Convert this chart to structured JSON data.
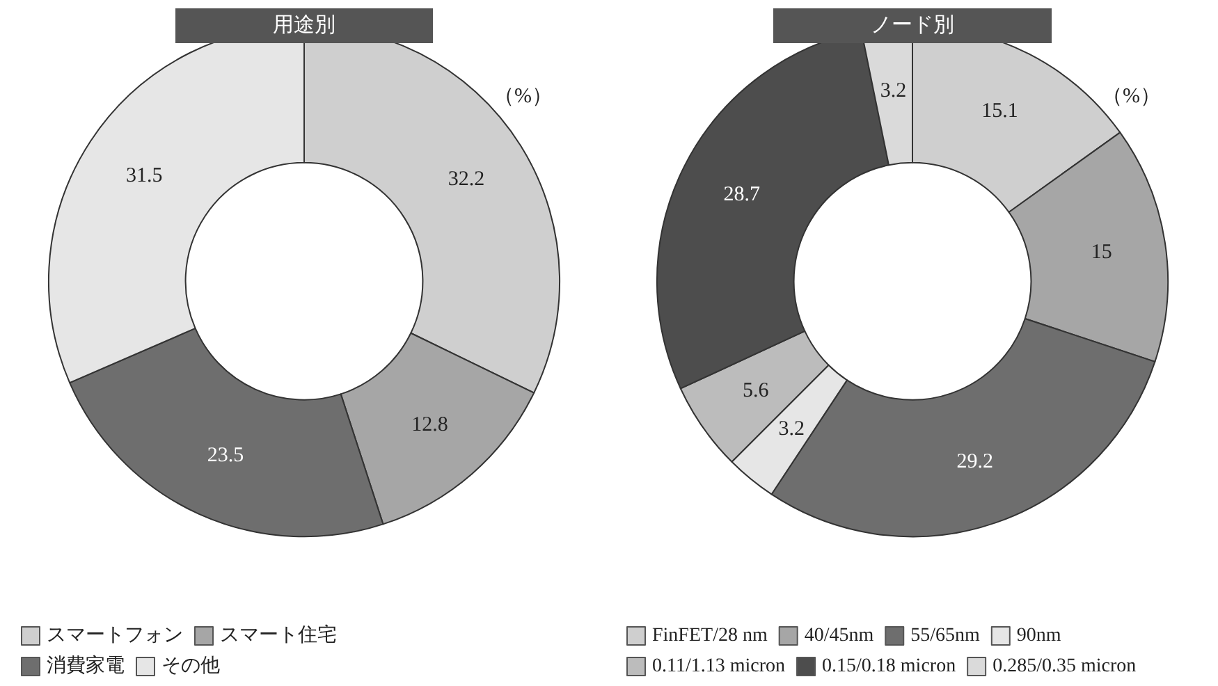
{
  "chart_data": [
    {
      "type": "donut",
      "title": "用途別",
      "annotations": [
        "（%）"
      ],
      "categories": [
        "スマートフォン",
        "スマート住宅",
        "消費家電",
        "その他"
      ],
      "values": [
        32.2,
        12.8,
        23.5,
        31.5
      ],
      "colors": [
        "#cfcfcf",
        "#a6a6a6",
        "#6e6e6e",
        "#e6e6e6"
      ],
      "data_labels": true,
      "legend": "bottom"
    },
    {
      "type": "donut",
      "title": "ノード別",
      "annotations": [
        "（%）"
      ],
      "categories": [
        "FinFET/28 nm",
        "40/45nm",
        "55/65nm",
        "90nm",
        "0.11/1.13 micron",
        "0.15/0.18 micron",
        "0.285/0.35 micron"
      ],
      "values": [
        15.1,
        15,
        29.2,
        3.2,
        5.6,
        28.7,
        3.2
      ],
      "colors": [
        "#cfcfcf",
        "#a6a6a6",
        "#6e6e6e",
        "#e6e6e6",
        "#bcbcbc",
        "#4d4d4d",
        "#dadada"
      ],
      "data_labels": true,
      "legend": "bottom"
    }
  ]
}
